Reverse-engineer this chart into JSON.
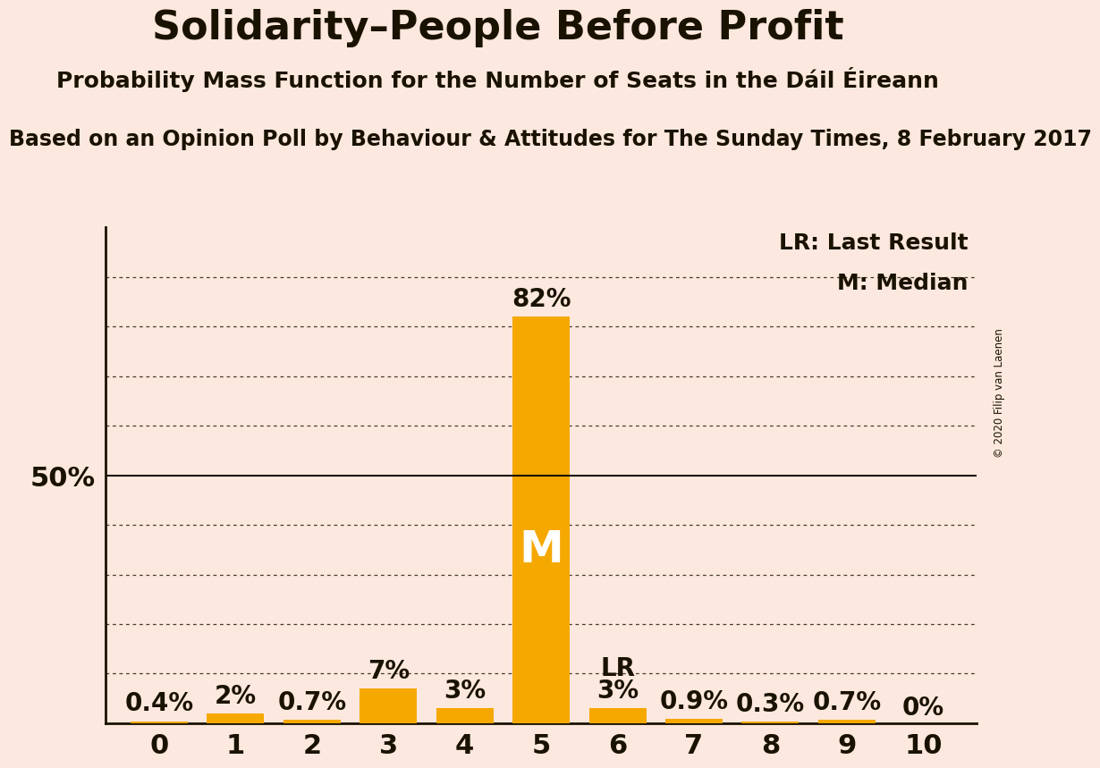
{
  "title": "Solidarity–People Before Profit",
  "subtitle": "Probability Mass Function for the Number of Seats in the Dáil Éireann",
  "source": "Based on an Opinion Poll by Behaviour & Attitudes for The Sunday Times, 8 February 2017",
  "copyright": "© 2020 Filip van Laenen",
  "categories": [
    0,
    1,
    2,
    3,
    4,
    5,
    6,
    7,
    8,
    9,
    10
  ],
  "values": [
    0.4,
    2.0,
    0.7,
    7.0,
    3.0,
    82.0,
    3.0,
    0.9,
    0.3,
    0.7,
    0.0
  ],
  "bar_color": "#f5a800",
  "background_color": "#fce8de",
  "text_color": "#1a1200",
  "median_seat": 5,
  "lr_seat": 6,
  "ylim": [
    0,
    100
  ],
  "y50_label": "50%",
  "legend_lr": "LR: Last Result",
  "legend_m": "M: Median",
  "dotted_lines": [
    10,
    20,
    30,
    40,
    60,
    70,
    80,
    90
  ],
  "bar_width": 0.75,
  "title_fontsize": 32,
  "subtitle_fontsize": 18,
  "source_fontsize": 17,
  "tick_fontsize": 22,
  "label_fontsize": 20,
  "legend_fontsize": 18,
  "m_fontsize": 36,
  "lr_fontsize": 20
}
